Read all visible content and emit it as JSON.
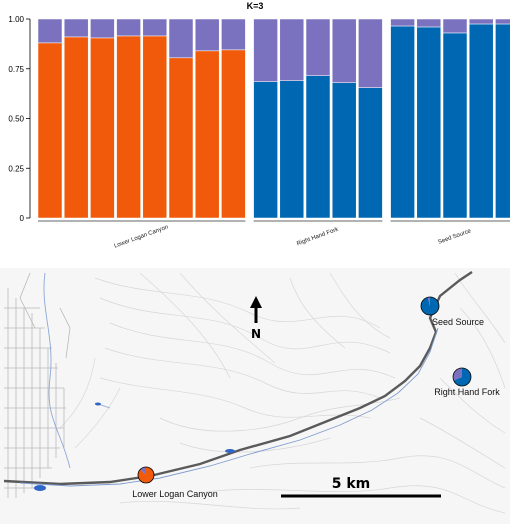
{
  "chart_data": {
    "type": "bar",
    "stacked": true,
    "title": "K=3",
    "xlabel": "",
    "ylabel": "",
    "ylim": [
      0,
      1
    ],
    "y_ticks": [
      "0",
      "0.25",
      "0.50",
      "0.75",
      "1.00"
    ],
    "grid": false,
    "groups": [
      {
        "label": "Lower Logan Canyon",
        "count": 8
      },
      {
        "label": "Right Hand Fork",
        "count": 5
      },
      {
        "label": "Seed Source",
        "count": 5
      }
    ],
    "series": [
      {
        "color": "#f05a0a",
        "values": [
          0.88,
          0.91,
          0.905,
          0.915,
          0.915,
          0.805,
          0.84,
          0.845,
          0,
          0,
          0,
          0,
          0,
          0,
          0,
          0,
          0,
          0
        ]
      },
      {
        "color": "#0068b3",
        "values": [
          0,
          0,
          0,
          0,
          0,
          0,
          0,
          0,
          0.685,
          0.69,
          0.715,
          0.68,
          0.655,
          0.965,
          0.96,
          0.93,
          0.975,
          0.975
        ]
      },
      {
        "color": "#7b72bf",
        "values": [
          0.12,
          0.09,
          0.095,
          0.085,
          0.085,
          0.195,
          0.16,
          0.155,
          0.315,
          0.31,
          0.285,
          0.32,
          0.345,
          0.035,
          0.04,
          0.07,
          0.025,
          0.025
        ]
      }
    ]
  },
  "map": {
    "north_label": "N",
    "scale_label": "5 km",
    "sites": [
      {
        "label": "Lower Logan Canyon",
        "orange": 0.87,
        "blue": 0.0,
        "purple": 0.13
      },
      {
        "label": "Seed Source",
        "orange": 0.0,
        "blue": 0.96,
        "purple": 0.04
      },
      {
        "label": "Right Hand Fork",
        "orange": 0.0,
        "blue": 0.69,
        "purple": 0.31
      }
    ]
  }
}
